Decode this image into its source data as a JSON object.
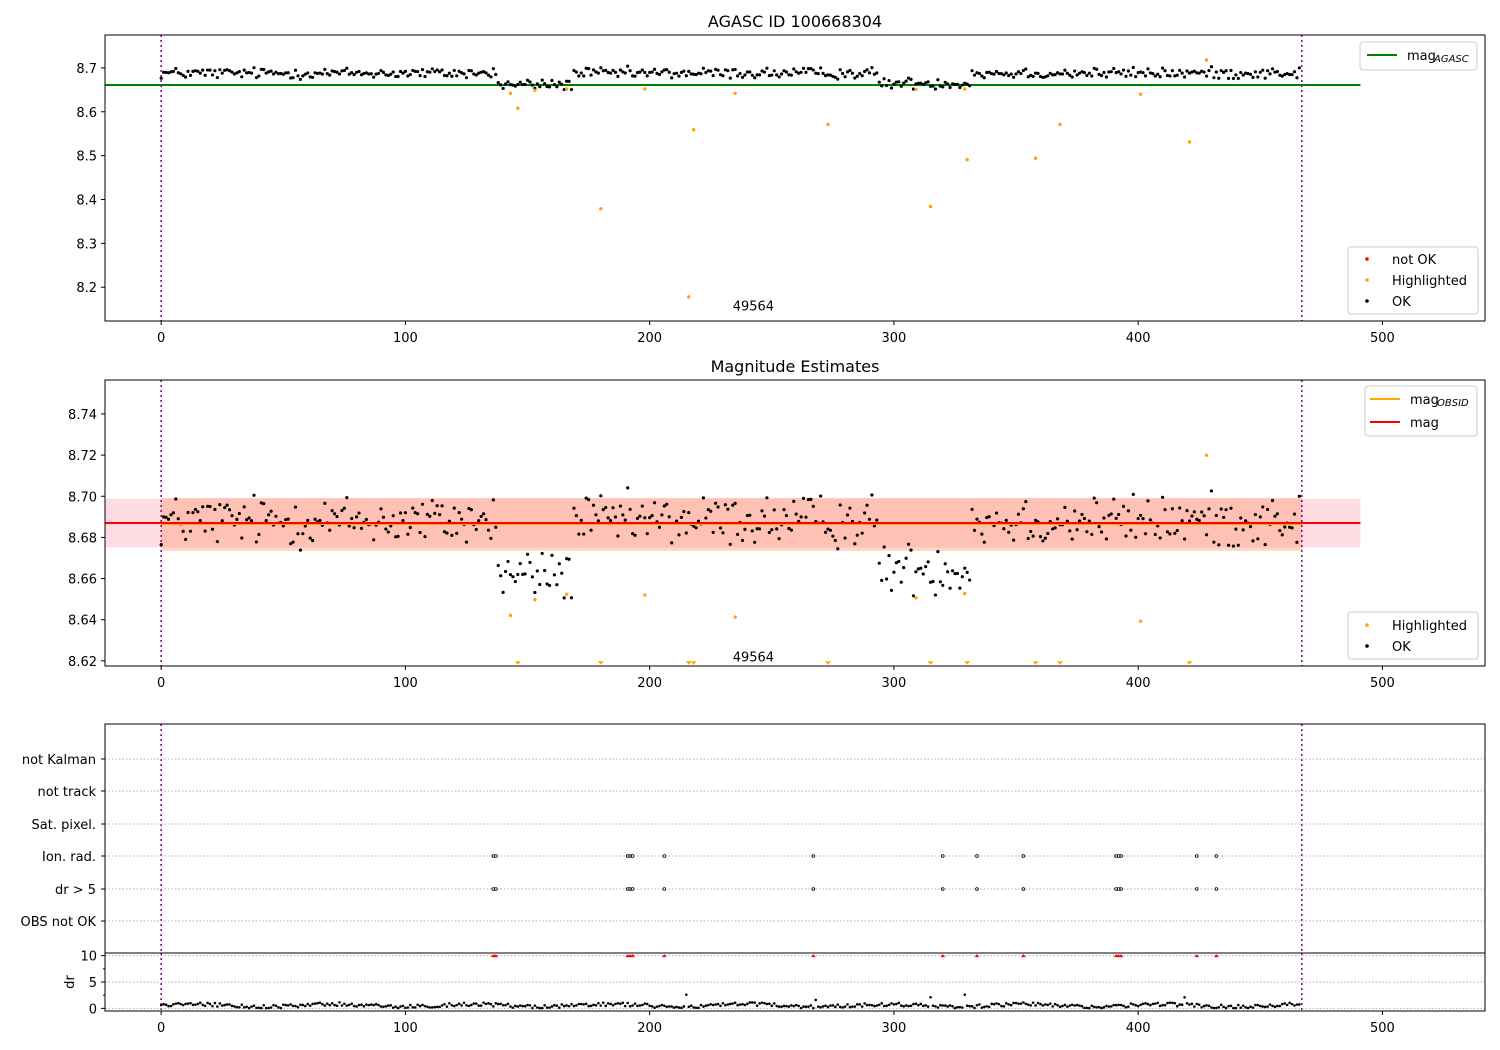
{
  "chart_data": [
    {
      "type": "scatter",
      "title": "AGASC ID 100668304",
      "xlim": [
        -23,
        542
      ],
      "ylim": [
        8.123,
        8.775
      ],
      "xticks": [
        0,
        100,
        200,
        300,
        400,
        500
      ],
      "yticks": [
        8.2,
        8.3,
        8.4,
        8.5,
        8.6,
        8.7
      ],
      "ytick_labels": [
        "8.2",
        "8.3",
        "8.4",
        "8.5",
        "8.6",
        "8.7"
      ],
      "vlines": [
        0,
        467
      ],
      "hline": {
        "y": 8.661,
        "x_range": [
          -23,
          491
        ],
        "color": "#008000",
        "label_main": "mag",
        "label_sub": "AGASC"
      },
      "annotation": {
        "text": "49564",
        "x": 234,
        "y": 8.158
      },
      "legend_markers": [
        {
          "name": "not OK",
          "color": "#ff0000"
        },
        {
          "name": "Highlighted",
          "color": "#ffa500"
        },
        {
          "name": "OK",
          "color": "#000000"
        }
      ],
      "series": [
        {
          "name": "OK",
          "color": "#000000",
          "n": 467,
          "base": 8.688,
          "dips": [
            {
              "x0": 138,
              "x1": 168,
              "y": 8.662
            },
            {
              "x0": 294,
              "x1": 331,
              "y": 8.665
            }
          ]
        },
        {
          "name": "Highlighted",
          "color": "#ffa500",
          "points": [
            [
              143,
              8.642
            ],
            [
              146,
              8.608
            ],
            [
              153,
              8.649
            ],
            [
              166,
              8.652
            ],
            [
              180,
              8.379
            ],
            [
              198,
              8.652
            ],
            [
              216,
              8.178
            ],
            [
              218,
              8.559
            ],
            [
              235,
              8.642
            ],
            [
              273,
              8.571
            ],
            [
              309,
              8.651
            ],
            [
              315,
              8.384
            ],
            [
              329,
              8.652
            ],
            [
              330,
              8.491
            ],
            [
              358,
              8.494
            ],
            [
              368,
              8.571
            ],
            [
              401,
              8.64
            ],
            [
              421,
              8.531
            ],
            [
              428,
              8.718
            ]
          ]
        }
      ]
    },
    {
      "type": "scatter",
      "title": "Magnitude Estimates",
      "xlim": [
        -23,
        542
      ],
      "ylim": [
        8.6175,
        8.7565
      ],
      "xticks": [
        0,
        100,
        200,
        300,
        400,
        500
      ],
      "yticks": [
        8.62,
        8.64,
        8.66,
        8.68,
        8.7,
        8.72,
        8.74
      ],
      "ytick_labels": [
        "8.62",
        "8.64",
        "8.66",
        "8.68",
        "8.70",
        "8.72",
        "8.74"
      ],
      "vlines": [
        0,
        467
      ],
      "bands": [
        {
          "x_range": [
            -23,
            491
          ],
          "y_range": [
            8.6752,
            8.6988
          ],
          "color": "#ffc0cb",
          "opacity": 0.55
        },
        {
          "x_range": [
            0,
            467
          ],
          "y_range": [
            8.6735,
            8.6992
          ],
          "color": "#ffa07a",
          "opacity": 0.45
        }
      ],
      "lines": [
        {
          "y": 8.6865,
          "x_range": [
            0,
            467
          ],
          "color": "#ffa500",
          "label_main": "mag",
          "label_sub": "OBSID"
        },
        {
          "y": 8.687,
          "x_range": [
            -23,
            491
          ],
          "color": "#ff0000",
          "label_main": "mag",
          "label_sub": ""
        }
      ],
      "annotation": {
        "text": "49564",
        "x": 234,
        "y": 8.6222
      },
      "legend_markers": [
        {
          "name": "Highlighted",
          "color": "#ffa500"
        },
        {
          "name": "OK",
          "color": "#000000"
        }
      ],
      "series": [
        {
          "name": "OK",
          "color": "#000000",
          "n": 467,
          "base": 8.688,
          "dips": [
            {
              "x0": 138,
              "x1": 168,
              "y": 8.662
            },
            {
              "x0": 294,
              "x1": 331,
              "y": 8.665
            }
          ]
        },
        {
          "name": "Highlighted",
          "color": "#ffa500",
          "points": [
            [
              143,
              8.6421
            ],
            [
              153,
              8.6497
            ],
            [
              166,
              8.6524
            ],
            [
              198,
              8.652
            ],
            [
              235,
              8.6413
            ],
            [
              309,
              8.6506
            ],
            [
              329,
              8.6527
            ],
            [
              401,
              8.6393
            ],
            [
              428,
              8.7199
            ]
          ]
        },
        {
          "name": "Highlighted (off-scale)",
          "color": "#ffa500",
          "marker": "triangle-down",
          "x": [
            146,
            180,
            216,
            218,
            273,
            315,
            330,
            358,
            368,
            421
          ]
        }
      ]
    },
    {
      "type": "scatter",
      "title": "",
      "xlim": [
        -23,
        542
      ],
      "xticks": [
        0,
        100,
        200,
        300,
        400,
        500
      ],
      "vlines": [
        0,
        467
      ],
      "flag_rows": [
        "not Kalman",
        "not track",
        "Sat. pixel.",
        "Ion. rad.",
        "dr > 5",
        "OBS not OK"
      ],
      "flags": {
        "Ion. rad.": [
          136,
          137,
          191,
          192,
          193,
          206,
          267,
          320,
          334,
          353,
          391,
          392,
          393,
          424,
          432
        ],
        "dr > 5": [
          136,
          137,
          191,
          192,
          193,
          206,
          267,
          320,
          334,
          353,
          391,
          392,
          393,
          424,
          432
        ]
      },
      "dr_axis": {
        "label": "dr",
        "yticks": [
          0,
          5,
          10
        ],
        "ytick_labels": [
          "0",
          "5",
          "10"
        ],
        "ylim": [
          -0.5,
          10.5
        ]
      },
      "dr_series": {
        "color": "#000000",
        "n": 467,
        "base": 0.55,
        "spikes": [
          [
            215,
            2.6
          ],
          [
            268,
            1.6
          ],
          [
            315,
            2.1
          ],
          [
            329,
            2.6
          ],
          [
            419,
            2.1
          ]
        ]
      },
      "dr_capped": {
        "color": "#ff0000",
        "marker": "triangle-up",
        "y": 10,
        "x": [
          136,
          137,
          191,
          192,
          193,
          206,
          267,
          320,
          334,
          353,
          391,
          392,
          393,
          424,
          432
        ]
      }
    }
  ]
}
